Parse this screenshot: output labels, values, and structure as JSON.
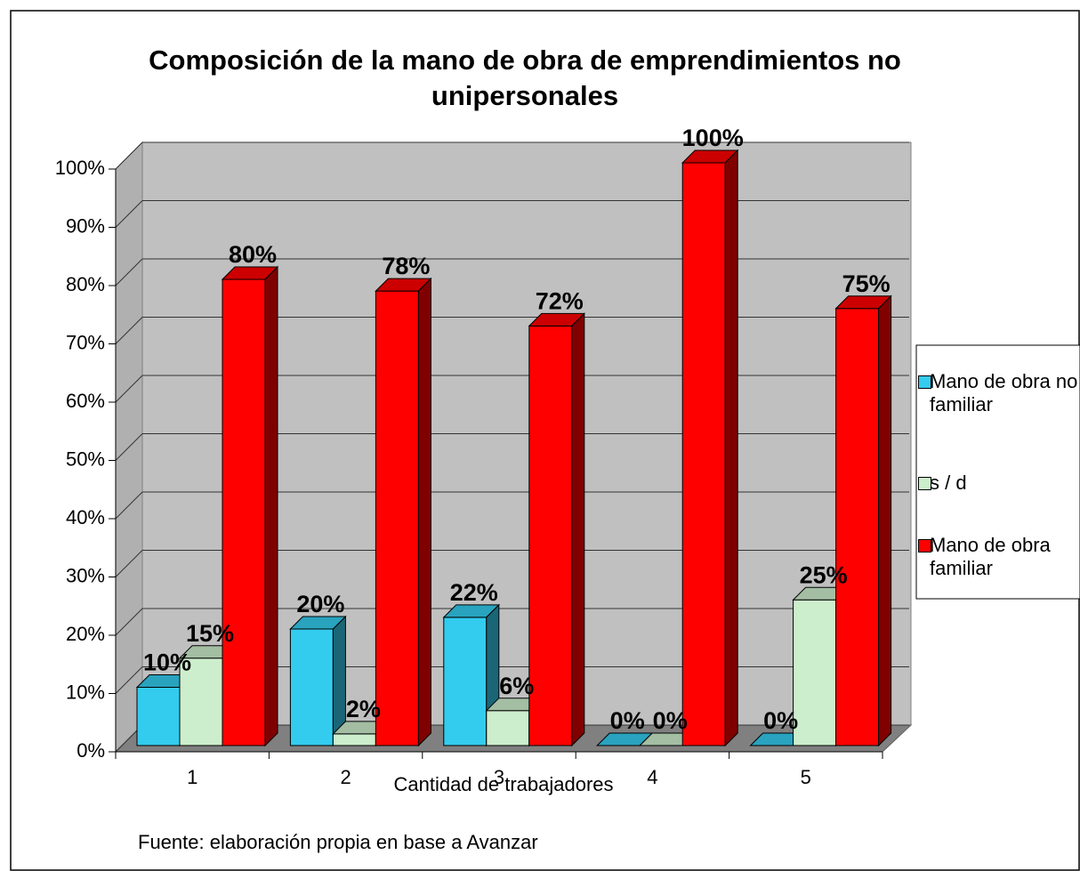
{
  "chart_data": {
    "type": "bar3d",
    "title": "Composición de la mano de obra de emprendimientos no unipersonales",
    "xlabel": "Cantidad de trabajadores",
    "source": "Fuente: elaboración propia en base a Avanzar",
    "categories": [
      "1",
      "2",
      "3",
      "4",
      "5"
    ],
    "series": [
      {
        "name": "Mano de obra no familiar",
        "color": "#33ccee",
        "values": [
          10,
          20,
          22,
          0,
          0
        ],
        "value_labels": [
          "10%",
          "20%",
          "22%",
          "0%",
          "0%"
        ]
      },
      {
        "name": "s / d",
        "color": "#cceecc",
        "values": [
          15,
          2,
          6,
          0,
          25
        ],
        "value_labels": [
          "15%",
          "2%",
          "6%",
          "0%",
          "25%"
        ]
      },
      {
        "name": "Mano de obra familiar",
        "color": "#ff0000",
        "values": [
          80,
          78,
          72,
          100,
          75
        ],
        "value_labels": [
          "80%",
          "78%",
          "72%",
          "100%",
          "75%"
        ]
      }
    ],
    "ylim": [
      0,
      100
    ],
    "yticks": [
      {
        "value": 0,
        "label": "0%"
      },
      {
        "value": 10,
        "label": "10%"
      },
      {
        "value": 20,
        "label": "20%"
      },
      {
        "value": 30,
        "label": "30%"
      },
      {
        "value": 40,
        "label": "40%"
      },
      {
        "value": 50,
        "label": "50%"
      },
      {
        "value": 60,
        "label": "60%"
      },
      {
        "value": 70,
        "label": "70%"
      },
      {
        "value": 80,
        "label": "80%"
      },
      {
        "value": 90,
        "label": "90%"
      },
      {
        "value": 100,
        "label": "100%"
      }
    ],
    "grid": true,
    "legend": "right"
  }
}
